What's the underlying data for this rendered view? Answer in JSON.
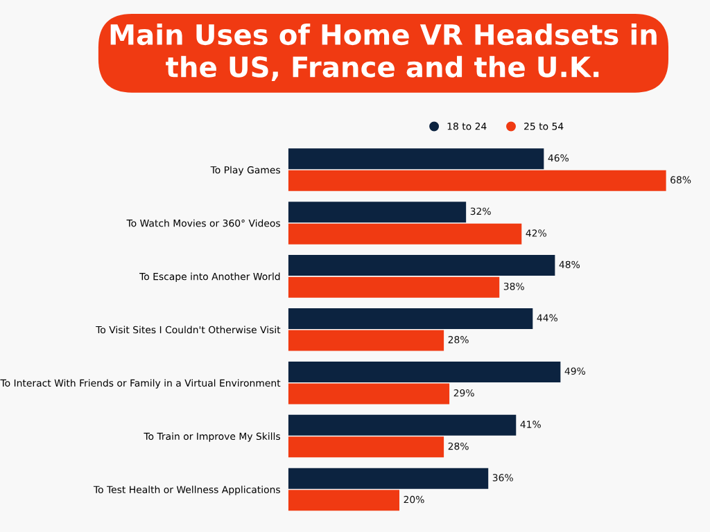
{
  "chart_data": {
    "type": "bar",
    "orientation": "horizontal",
    "title": "Main Uses of Home VR Headsets in\nthe US, France and the U.K.",
    "categories": [
      "To Play Games",
      "To Watch Movies or 360° Videos",
      "To Escape into Another World",
      "To Visit Sites I Couldn't Otherwise Visit",
      "To Interact With Friends or Family in a Virtual Environment",
      "To Train or Improve My Skills",
      "To Test Health or Wellness Applications"
    ],
    "series": [
      {
        "name": "18 to 24",
        "color": "#0c2340",
        "values": [
          46,
          32,
          48,
          44,
          49,
          41,
          36
        ],
        "value_labels": [
          "46%",
          "32%",
          "48%",
          "44%",
          "49%",
          "41%",
          "36%"
        ]
      },
      {
        "name": "25 to 54",
        "color": "#f03a12",
        "values": [
          68,
          42,
          38,
          28,
          29,
          28,
          20
        ],
        "value_labels": [
          "68%",
          "42%",
          "38%",
          "28%",
          "29%",
          "28%",
          "20%"
        ]
      }
    ],
    "legend": "top",
    "grid": false
  }
}
